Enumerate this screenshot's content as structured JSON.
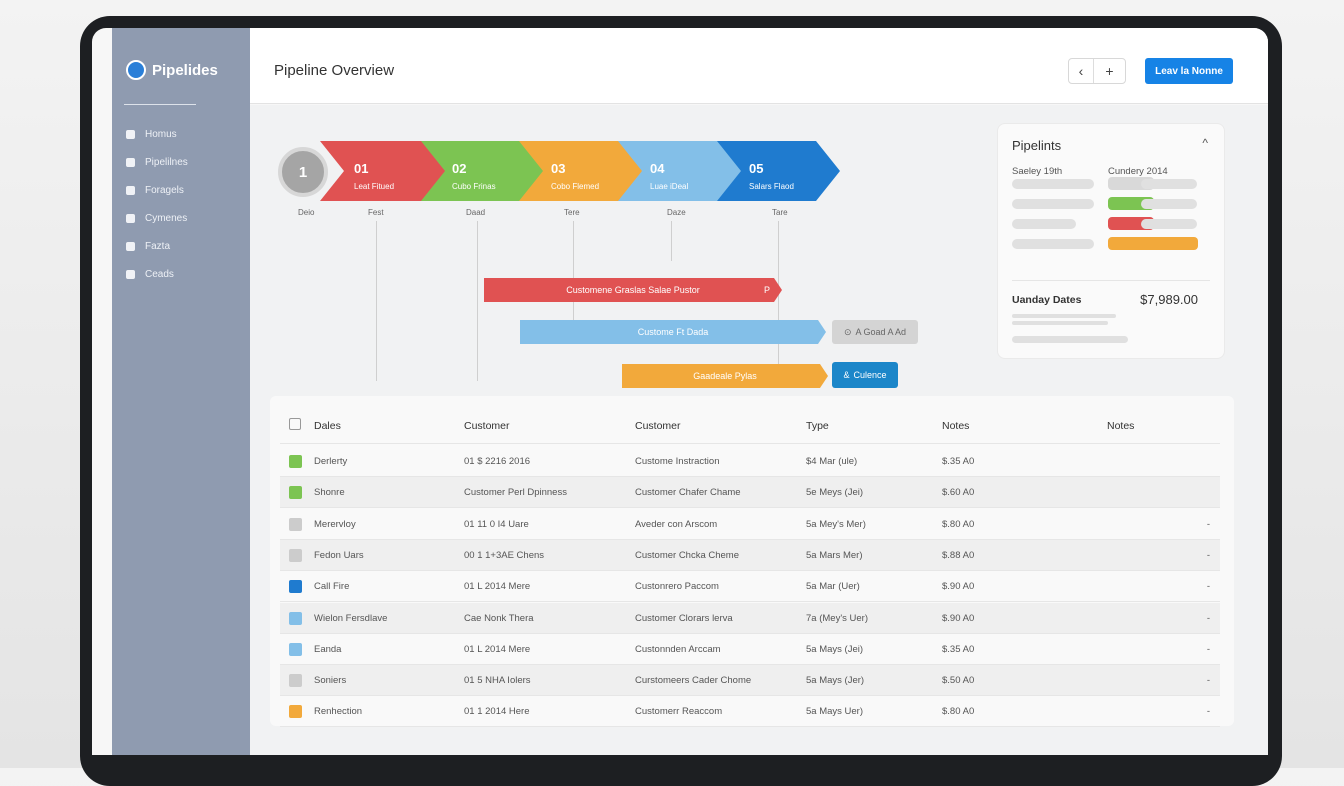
{
  "sidebar": {
    "app_name": "Pipelides",
    "items": [
      {
        "label": "Homus",
        "icon": "home-icon"
      },
      {
        "label": "Pipelilnes",
        "icon": "pipeline-icon"
      },
      {
        "label": "Foragels",
        "icon": "folder-icon"
      },
      {
        "label": "Cymenes",
        "icon": "calendar-icon"
      },
      {
        "label": "Fazta",
        "icon": "chart-icon"
      },
      {
        "label": "Ceads",
        "icon": "user-icon"
      }
    ]
  },
  "header": {
    "title": "Pipeline Overview",
    "back_icon": "chevron-left-icon",
    "add_icon": "plus-icon",
    "primary_label": "Leav la Nonne"
  },
  "stages": [
    {
      "num": "1"
    },
    {
      "num": "01",
      "label": "Leat Fitued",
      "color": "#e05252"
    },
    {
      "num": "02",
      "label": "Cubo Frinas",
      "color": "#7cc452"
    },
    {
      "num": "03",
      "label": "Cobo Flemed",
      "color": "#f2a93b"
    },
    {
      "num": "04",
      "label": "Luae iDeal",
      "color": "#83bfe8"
    },
    {
      "num": "05",
      "label": "Salars Flaod",
      "color": "#1f7bcf"
    }
  ],
  "ticks": [
    "Deio",
    "Fest",
    "Daad",
    "Tere",
    "Daze",
    "Tare"
  ],
  "bars": [
    {
      "label": "Customene Graslas Salae Pustor",
      "end": "P",
      "color": "#e05252"
    },
    {
      "label": "Custome Ft Dada",
      "color": "#83bfe8",
      "tag": "A Goad A Ad",
      "tag_icon": "pin-icon"
    },
    {
      "label": "Gaadeale Pylas",
      "color": "#f2a93b",
      "tag": "Culence",
      "tag_icon": "link-icon"
    }
  ],
  "card": {
    "title": "Pipelints",
    "col1": "Saeley 19th",
    "col2": "Cundery 2014",
    "total_label": "Uanday Dates",
    "total_value": "$7,989.00",
    "swatches": [
      "#d9d9d9",
      "#7cc452",
      "#e05252",
      "#f2a93b"
    ]
  },
  "table": {
    "headers": [
      "Dales",
      "Customer",
      "Customer",
      "Type",
      "Notes",
      "Notes"
    ],
    "rows": [
      {
        "color": "#7cc452",
        "c": [
          "Derlerty",
          "01 $ 2216 2016",
          "Custome Instraction",
          "$4 Mar (ule)",
          "$.35 A0",
          ""
        ]
      },
      {
        "color": "#7cc452",
        "c": [
          "Shonre",
          "Customer Perl Dpinness",
          "Customer Chafer Chame",
          "5e Meys (Jei)",
          "$.60 A0",
          ""
        ]
      },
      {
        "color": "#cccccc",
        "c": [
          "Merervloy",
          "01 11 0 I4 Uare",
          "Aveder con Arscom",
          "5a Mey's Mer)",
          "$.80 A0",
          "-"
        ]
      },
      {
        "color": "#cccccc",
        "c": [
          "Fedon Uars",
          "00 1 1+3AE Chens",
          "Customer Chcka Cheme",
          "5a Mars Mer)",
          "$.88 A0",
          "-"
        ]
      },
      {
        "color": "#1f7bcf",
        "c": [
          "Call Fire",
          "01 L 2014 Mere",
          "Custonrero Paccom",
          "5a Mar (Uer)",
          "$.90 A0",
          "-"
        ]
      },
      {
        "color": "#83bfe8",
        "c": [
          "Wielon Fersdlave",
          "Cae Nonk Thera",
          "Customer Clorars lerva",
          "7a (Mey's Uer)",
          "$.90 A0",
          "-"
        ]
      },
      {
        "color": "#83bfe8",
        "c": [
          "Eanda",
          "01 L 2014 Mere",
          "Custonnden Arccam",
          "5a Mays (Jei)",
          "$.35 A0",
          "-"
        ]
      },
      {
        "color": "#cccccc",
        "c": [
          "Soniers",
          "01 5 NHA Iolers",
          "Curstomeers Cader Chome",
          "5a Mays (Jer)",
          "$.50 A0",
          "-"
        ]
      },
      {
        "color": "#f2a93b",
        "c": [
          "Renhection",
          "01 1 2014 Here",
          "Customerr Reaccom",
          "5a Mays Uer)",
          "$.80 A0",
          "-"
        ]
      }
    ]
  }
}
